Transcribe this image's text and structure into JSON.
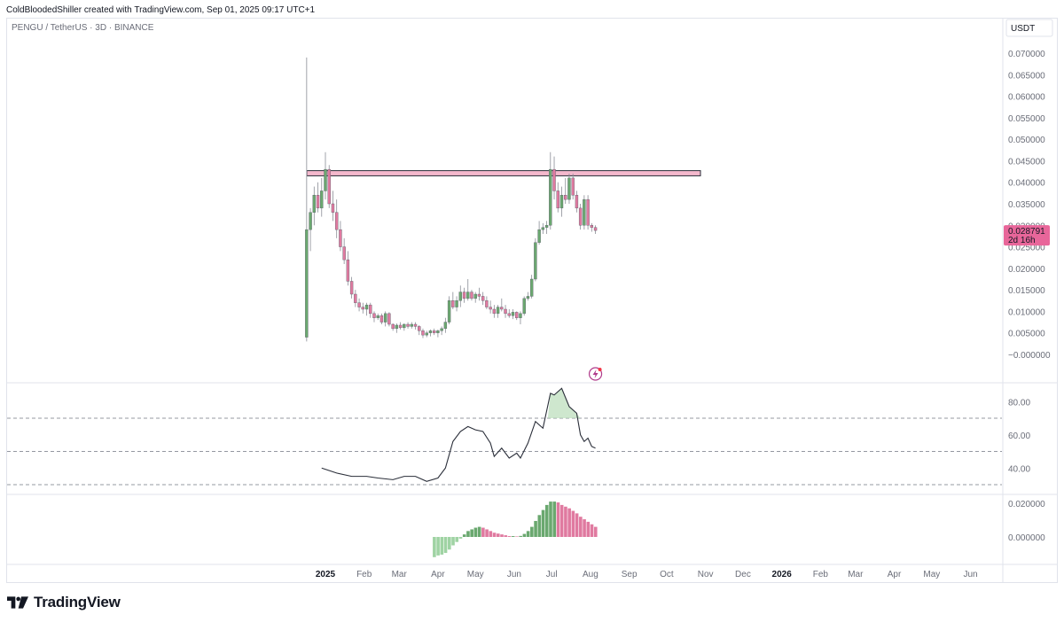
{
  "header": {
    "text": "ColdBloodedShiller created with TradingView.com, Sep 01, 2025 09:17 UTC+1"
  },
  "symbol": {
    "text": "PENGU / TetherUS · 3D · BINANCE"
  },
  "currency": "USDT",
  "price_label": {
    "value": "0.028791",
    "countdown": "2d 16h"
  },
  "brand": {
    "name": "TradingView"
  },
  "colors": {
    "up": "#6aa86f",
    "down": "#e07aa0",
    "resistance": "#f4b8cc",
    "rsi_line": "#2a2e39",
    "accent": "#e8669a"
  },
  "chart_data": [
    {
      "type": "candlestick",
      "title": "PENGU / TetherUS · 3D · BINANCE",
      "ylim": [
        0,
        0.07
      ],
      "y_ticks": [
        "0.070000",
        "0.065000",
        "0.060000",
        "0.055000",
        "0.050000",
        "0.045000",
        "0.040000",
        "0.035000",
        "0.030000",
        "0.025000",
        "0.020000",
        "0.015000",
        "0.010000",
        "0.005000",
        "−0.000000"
      ],
      "x_ticks": [
        "2025",
        "Feb",
        "Mar",
        "Apr",
        "May",
        "Jun",
        "Jul",
        "Aug",
        "Sep",
        "Oct",
        "Nov",
        "Dec",
        "2026",
        "Feb",
        "Mar",
        "Apr",
        "May",
        "Jun"
      ],
      "resistance_zone": [
        0.0415,
        0.0427
      ],
      "candles": [
        {
          "date": "2024-12-17",
          "o": 0.004,
          "h": 0.069,
          "l": 0.003,
          "c": 0.029
        },
        {
          "date": "2024-12-20",
          "o": 0.029,
          "h": 0.034,
          "l": 0.024,
          "c": 0.033
        },
        {
          "date": "2024-12-23",
          "o": 0.033,
          "h": 0.039,
          "l": 0.03,
          "c": 0.037
        },
        {
          "date": "2024-12-26",
          "o": 0.037,
          "h": 0.04,
          "l": 0.033,
          "c": 0.034
        },
        {
          "date": "2024-12-29",
          "o": 0.034,
          "h": 0.041,
          "l": 0.032,
          "c": 0.038
        },
        {
          "date": "2025-01-01",
          "o": 0.038,
          "h": 0.047,
          "l": 0.036,
          "c": 0.043
        },
        {
          "date": "2025-01-04",
          "o": 0.043,
          "h": 0.044,
          "l": 0.034,
          "c": 0.035
        },
        {
          "date": "2025-01-07",
          "o": 0.035,
          "h": 0.038,
          "l": 0.031,
          "c": 0.033
        },
        {
          "date": "2025-01-10",
          "o": 0.033,
          "h": 0.036,
          "l": 0.027,
          "c": 0.029
        },
        {
          "date": "2025-01-13",
          "o": 0.029,
          "h": 0.031,
          "l": 0.024,
          "c": 0.025
        },
        {
          "date": "2025-01-16",
          "o": 0.025,
          "h": 0.027,
          "l": 0.021,
          "c": 0.022
        },
        {
          "date": "2025-01-19",
          "o": 0.022,
          "h": 0.024,
          "l": 0.016,
          "c": 0.017
        },
        {
          "date": "2025-01-22",
          "o": 0.017,
          "h": 0.018,
          "l": 0.013,
          "c": 0.014
        },
        {
          "date": "2025-01-25",
          "o": 0.014,
          "h": 0.015,
          "l": 0.011,
          "c": 0.012
        },
        {
          "date": "2025-01-28",
          "o": 0.012,
          "h": 0.013,
          "l": 0.01,
          "c": 0.011
        },
        {
          "date": "2025-01-31",
          "o": 0.011,
          "h": 0.012,
          "l": 0.0095,
          "c": 0.0105
        },
        {
          "date": "2025-02-03",
          "o": 0.0105,
          "h": 0.012,
          "l": 0.009,
          "c": 0.0115
        },
        {
          "date": "2025-02-06",
          "o": 0.0115,
          "h": 0.012,
          "l": 0.0085,
          "c": 0.0095
        },
        {
          "date": "2025-02-09",
          "o": 0.0095,
          "h": 0.01,
          "l": 0.0075,
          "c": 0.0085
        },
        {
          "date": "2025-02-12",
          "o": 0.0085,
          "h": 0.0095,
          "l": 0.008,
          "c": 0.009
        },
        {
          "date": "2025-02-15",
          "o": 0.009,
          "h": 0.0095,
          "l": 0.007,
          "c": 0.0075
        },
        {
          "date": "2025-02-18",
          "o": 0.0075,
          "h": 0.01,
          "l": 0.0065,
          "c": 0.0095
        },
        {
          "date": "2025-02-21",
          "o": 0.0095,
          "h": 0.0098,
          "l": 0.0065,
          "c": 0.007
        },
        {
          "date": "2025-02-24",
          "o": 0.007,
          "h": 0.0072,
          "l": 0.0055,
          "c": 0.006
        },
        {
          "date": "2025-02-27",
          "o": 0.006,
          "h": 0.0072,
          "l": 0.005,
          "c": 0.0068
        },
        {
          "date": "2025-03-02",
          "o": 0.0068,
          "h": 0.0075,
          "l": 0.0058,
          "c": 0.0062
        },
        {
          "date": "2025-03-05",
          "o": 0.0062,
          "h": 0.0072,
          "l": 0.0055,
          "c": 0.007
        },
        {
          "date": "2025-03-08",
          "o": 0.007,
          "h": 0.0075,
          "l": 0.006,
          "c": 0.0065
        },
        {
          "date": "2025-03-11",
          "o": 0.0065,
          "h": 0.0075,
          "l": 0.006,
          "c": 0.007
        },
        {
          "date": "2025-03-14",
          "o": 0.007,
          "h": 0.0075,
          "l": 0.0058,
          "c": 0.0065
        },
        {
          "date": "2025-03-17",
          "o": 0.0065,
          "h": 0.0068,
          "l": 0.0045,
          "c": 0.0055
        },
        {
          "date": "2025-03-20",
          "o": 0.0055,
          "h": 0.006,
          "l": 0.0038,
          "c": 0.0045
        },
        {
          "date": "2025-03-23",
          "o": 0.0045,
          "h": 0.0055,
          "l": 0.004,
          "c": 0.005
        },
        {
          "date": "2025-03-26",
          "o": 0.005,
          "h": 0.0058,
          "l": 0.0042,
          "c": 0.0055
        },
        {
          "date": "2025-03-29",
          "o": 0.0055,
          "h": 0.006,
          "l": 0.0045,
          "c": 0.005
        },
        {
          "date": "2025-04-01",
          "o": 0.005,
          "h": 0.0058,
          "l": 0.004,
          "c": 0.0055
        },
        {
          "date": "2025-04-04",
          "o": 0.0055,
          "h": 0.0065,
          "l": 0.0045,
          "c": 0.006
        },
        {
          "date": "2025-04-07",
          "o": 0.006,
          "h": 0.0085,
          "l": 0.005,
          "c": 0.0075
        },
        {
          "date": "2025-04-10",
          "o": 0.0075,
          "h": 0.0135,
          "l": 0.007,
          "c": 0.0125
        },
        {
          "date": "2025-04-13",
          "o": 0.0125,
          "h": 0.0145,
          "l": 0.0105,
          "c": 0.011
        },
        {
          "date": "2025-04-16",
          "o": 0.011,
          "h": 0.0135,
          "l": 0.01,
          "c": 0.0125
        },
        {
          "date": "2025-04-19",
          "o": 0.0125,
          "h": 0.016,
          "l": 0.011,
          "c": 0.0145
        },
        {
          "date": "2025-04-22",
          "o": 0.0145,
          "h": 0.0155,
          "l": 0.012,
          "c": 0.013
        },
        {
          "date": "2025-04-25",
          "o": 0.013,
          "h": 0.0175,
          "l": 0.0125,
          "c": 0.0145
        },
        {
          "date": "2025-04-28",
          "o": 0.0145,
          "h": 0.015,
          "l": 0.0125,
          "c": 0.013
        },
        {
          "date": "2025-05-01",
          "o": 0.013,
          "h": 0.0145,
          "l": 0.012,
          "c": 0.014
        },
        {
          "date": "2025-05-04",
          "o": 0.014,
          "h": 0.0155,
          "l": 0.0125,
          "c": 0.0135
        },
        {
          "date": "2025-05-07",
          "o": 0.0135,
          "h": 0.0145,
          "l": 0.0115,
          "c": 0.0125
        },
        {
          "date": "2025-05-10",
          "o": 0.0125,
          "h": 0.0135,
          "l": 0.0105,
          "c": 0.011
        },
        {
          "date": "2025-05-13",
          "o": 0.011,
          "h": 0.0125,
          "l": 0.0095,
          "c": 0.0105
        },
        {
          "date": "2025-05-16",
          "o": 0.0105,
          "h": 0.0115,
          "l": 0.0085,
          "c": 0.0095
        },
        {
          "date": "2025-05-19",
          "o": 0.0095,
          "h": 0.0115,
          "l": 0.0085,
          "c": 0.011
        },
        {
          "date": "2025-05-22",
          "o": 0.011,
          "h": 0.013,
          "l": 0.01,
          "c": 0.0105
        },
        {
          "date": "2025-05-25",
          "o": 0.0105,
          "h": 0.0115,
          "l": 0.0085,
          "c": 0.0095
        },
        {
          "date": "2025-05-28",
          "o": 0.0095,
          "h": 0.0105,
          "l": 0.0085,
          "c": 0.009
        },
        {
          "date": "2025-05-31",
          "o": 0.009,
          "h": 0.0105,
          "l": 0.0082,
          "c": 0.0098
        },
        {
          "date": "2025-06-03",
          "o": 0.0098,
          "h": 0.01,
          "l": 0.008,
          "c": 0.0085
        },
        {
          "date": "2025-06-06",
          "o": 0.0085,
          "h": 0.01,
          "l": 0.007,
          "c": 0.0095
        },
        {
          "date": "2025-06-09",
          "o": 0.0095,
          "h": 0.0135,
          "l": 0.009,
          "c": 0.013
        },
        {
          "date": "2025-06-12",
          "o": 0.013,
          "h": 0.0145,
          "l": 0.0125,
          "c": 0.0135
        },
        {
          "date": "2025-06-15",
          "o": 0.0135,
          "h": 0.0185,
          "l": 0.013,
          "c": 0.0175
        },
        {
          "date": "2025-06-18",
          "o": 0.0175,
          "h": 0.027,
          "l": 0.017,
          "c": 0.026
        },
        {
          "date": "2025-06-21",
          "o": 0.026,
          "h": 0.031,
          "l": 0.0255,
          "c": 0.029
        },
        {
          "date": "2025-06-24",
          "o": 0.029,
          "h": 0.0305,
          "l": 0.028,
          "c": 0.0295
        },
        {
          "date": "2025-06-27",
          "o": 0.0295,
          "h": 0.031,
          "l": 0.028,
          "c": 0.03
        },
        {
          "date": "2025-06-30",
          "o": 0.03,
          "h": 0.047,
          "l": 0.029,
          "c": 0.043
        },
        {
          "date": "2025-07-03",
          "o": 0.043,
          "h": 0.046,
          "l": 0.036,
          "c": 0.038
        },
        {
          "date": "2025-07-06",
          "o": 0.038,
          "h": 0.04,
          "l": 0.033,
          "c": 0.034
        },
        {
          "date": "2025-07-09",
          "o": 0.034,
          "h": 0.039,
          "l": 0.032,
          "c": 0.037
        },
        {
          "date": "2025-07-12",
          "o": 0.037,
          "h": 0.041,
          "l": 0.035,
          "c": 0.036
        },
        {
          "date": "2025-07-15",
          "o": 0.036,
          "h": 0.042,
          "l": 0.035,
          "c": 0.041
        },
        {
          "date": "2025-07-18",
          "o": 0.041,
          "h": 0.042,
          "l": 0.036,
          "c": 0.037
        },
        {
          "date": "2025-07-21",
          "o": 0.037,
          "h": 0.038,
          "l": 0.033,
          "c": 0.034
        },
        {
          "date": "2025-07-24",
          "o": 0.034,
          "h": 0.035,
          "l": 0.029,
          "c": 0.03
        },
        {
          "date": "2025-07-27",
          "o": 0.03,
          "h": 0.037,
          "l": 0.029,
          "c": 0.036
        },
        {
          "date": "2025-07-30",
          "o": 0.036,
          "h": 0.037,
          "l": 0.029,
          "c": 0.03
        },
        {
          "date": "2025-08-02",
          "o": 0.03,
          "h": 0.0305,
          "l": 0.0285,
          "c": 0.0295
        },
        {
          "date": "2025-08-05",
          "o": 0.0295,
          "h": 0.03,
          "l": 0.028,
          "c": 0.0288
        }
      ]
    },
    {
      "type": "line",
      "title": "",
      "ylim": [
        20,
        95
      ],
      "y_ticks": [
        "80.00",
        "60.00",
        "40.00"
      ],
      "bands": [
        30,
        50,
        70
      ],
      "series": [
        {
          "values": [
            {
              "date": "2024-12-29",
              "v": 40
            },
            {
              "date": "2025-01-10",
              "v": 37
            },
            {
              "date": "2025-01-22",
              "v": 35
            },
            {
              "date": "2025-02-03",
              "v": 35
            },
            {
              "date": "2025-02-12",
              "v": 34
            },
            {
              "date": "2025-02-24",
              "v": 33
            },
            {
              "date": "2025-03-05",
              "v": 35
            },
            {
              "date": "2025-03-14",
              "v": 35
            },
            {
              "date": "2025-03-23",
              "v": 32
            },
            {
              "date": "2025-04-01",
              "v": 34
            },
            {
              "date": "2025-04-07",
              "v": 40
            },
            {
              "date": "2025-04-13",
              "v": 56
            },
            {
              "date": "2025-04-19",
              "v": 62
            },
            {
              "date": "2025-04-25",
              "v": 65
            },
            {
              "date": "2025-05-01",
              "v": 63
            },
            {
              "date": "2025-05-07",
              "v": 62
            },
            {
              "date": "2025-05-13",
              "v": 55
            },
            {
              "date": "2025-05-16",
              "v": 47
            },
            {
              "date": "2025-05-22",
              "v": 52
            },
            {
              "date": "2025-05-28",
              "v": 46
            },
            {
              "date": "2025-06-03",
              "v": 49
            },
            {
              "date": "2025-06-06",
              "v": 46
            },
            {
              "date": "2025-06-12",
              "v": 55
            },
            {
              "date": "2025-06-18",
              "v": 68
            },
            {
              "date": "2025-06-24",
              "v": 64
            },
            {
              "date": "2025-06-30",
              "v": 85
            },
            {
              "date": "2025-07-03",
              "v": 84
            },
            {
              "date": "2025-07-09",
              "v": 88
            },
            {
              "date": "2025-07-15",
              "v": 77
            },
            {
              "date": "2025-07-21",
              "v": 73
            },
            {
              "date": "2025-07-24",
              "v": 60
            },
            {
              "date": "2025-07-27",
              "v": 56
            },
            {
              "date": "2025-07-30",
              "v": 58
            },
            {
              "date": "2025-08-02",
              "v": 53
            },
            {
              "date": "2025-08-05",
              "v": 52
            }
          ]
        }
      ]
    },
    {
      "type": "bar",
      "title": "",
      "ylim": [
        -0.013,
        0.025
      ],
      "y_ticks": [
        "0.020000",
        "0.000000"
      ],
      "series": [
        {
          "values": [
            {
              "date": "2025-03-29",
              "v": -0.012
            },
            {
              "date": "2025-04-01",
              "v": -0.011
            },
            {
              "date": "2025-04-04",
              "v": -0.0105
            },
            {
              "date": "2025-04-07",
              "v": -0.0095
            },
            {
              "date": "2025-04-10",
              "v": -0.0075
            },
            {
              "date": "2025-04-13",
              "v": -0.005
            },
            {
              "date": "2025-04-16",
              "v": -0.003
            },
            {
              "date": "2025-04-19",
              "v": -0.001
            },
            {
              "date": "2025-04-22",
              "v": 0.0015
            },
            {
              "date": "2025-04-25",
              "v": 0.0035
            },
            {
              "date": "2025-04-28",
              "v": 0.0045
            },
            {
              "date": "2025-05-01",
              "v": 0.0055
            },
            {
              "date": "2025-05-04",
              "v": 0.006
            },
            {
              "date": "2025-05-07",
              "v": 0.0055
            },
            {
              "date": "2025-05-10",
              "v": 0.0045
            },
            {
              "date": "2025-05-13",
              "v": 0.0035
            },
            {
              "date": "2025-05-16",
              "v": 0.0025
            },
            {
              "date": "2025-05-19",
              "v": 0.002
            },
            {
              "date": "2025-05-22",
              "v": 0.0015
            },
            {
              "date": "2025-05-25",
              "v": 0.001
            },
            {
              "date": "2025-05-28",
              "v": 0.0005
            },
            {
              "date": "2025-05-31",
              "v": 0.0005
            },
            {
              "date": "2025-06-03",
              "v": 0.0003
            },
            {
              "date": "2025-06-06",
              "v": 0.0006
            },
            {
              "date": "2025-06-09",
              "v": 0.0018
            },
            {
              "date": "2025-06-12",
              "v": 0.0035
            },
            {
              "date": "2025-06-15",
              "v": 0.006
            },
            {
              "date": "2025-06-18",
              "v": 0.0095
            },
            {
              "date": "2025-06-21",
              "v": 0.013
            },
            {
              "date": "2025-06-24",
              "v": 0.016
            },
            {
              "date": "2025-06-27",
              "v": 0.019
            },
            {
              "date": "2025-06-30",
              "v": 0.021
            },
            {
              "date": "2025-07-03",
              "v": 0.021
            },
            {
              "date": "2025-07-06",
              "v": 0.0205
            },
            {
              "date": "2025-07-09",
              "v": 0.019
            },
            {
              "date": "2025-07-12",
              "v": 0.018
            },
            {
              "date": "2025-07-15",
              "v": 0.017
            },
            {
              "date": "2025-07-18",
              "v": 0.0155
            },
            {
              "date": "2025-07-21",
              "v": 0.014
            },
            {
              "date": "2025-07-24",
              "v": 0.012
            },
            {
              "date": "2025-07-27",
              "v": 0.0105
            },
            {
              "date": "2025-07-30",
              "v": 0.009
            },
            {
              "date": "2025-08-02",
              "v": 0.0075
            },
            {
              "date": "2025-08-05",
              "v": 0.006
            }
          ]
        }
      ]
    }
  ]
}
